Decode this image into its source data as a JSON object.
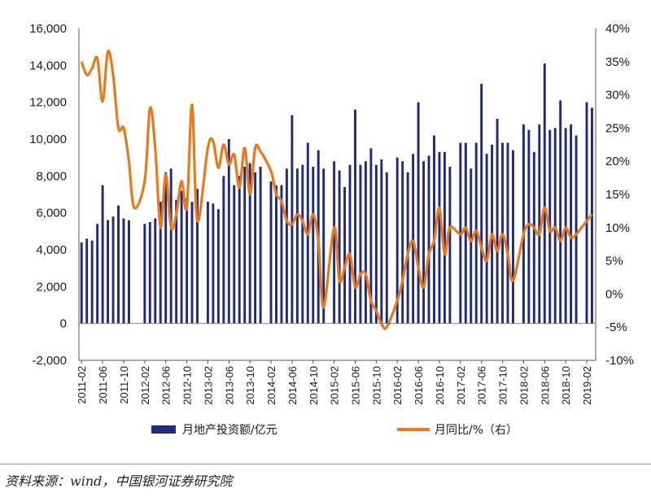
{
  "chart_data": {
    "type": "bar+line",
    "x_labels": [
      "2011-02",
      "2011-06",
      "2011-10",
      "2012-02",
      "2012-06",
      "2012-10",
      "2013-02",
      "2013-06",
      "2013-10",
      "2014-02",
      "2014-06",
      "2014-10",
      "2015-02",
      "2015-06",
      "2015-10",
      "2016-02",
      "2016-06",
      "2016-10",
      "2017-02",
      "2017-06",
      "2017-10",
      "2018-02",
      "2018-06",
      "2018-10",
      "2019-02"
    ],
    "left_axis": {
      "ylim": [
        -2000,
        16000
      ],
      "ticks": [
        "-2,000",
        "0",
        "2,000",
        "4,000",
        "6,000",
        "8,000",
        "10,000",
        "12,000",
        "14,000",
        "16,000"
      ]
    },
    "right_axis": {
      "ylim": [
        -10,
        40
      ],
      "ticks": [
        "-10%",
        "-5%",
        "0%",
        "5%",
        "10%",
        "15%",
        "20%",
        "25%",
        "30%",
        "35%",
        "40%"
      ]
    },
    "series": [
      {
        "name": "月地产投资额/亿元",
        "type": "bar",
        "axis": "left",
        "color": "#1f2a7a",
        "points": [
          [
            "2011-02",
            4400
          ],
          [
            "2011-03",
            4600
          ],
          [
            "2011-04",
            4500
          ],
          [
            "2011-05",
            5400
          ],
          [
            "2011-06",
            7500
          ],
          [
            "2011-07",
            5600
          ],
          [
            "2011-08",
            5800
          ],
          [
            "2011-09",
            6400
          ],
          [
            "2011-10",
            5700
          ],
          [
            "2011-11",
            5600
          ],
          [
            "2012-02",
            5400
          ],
          [
            "2012-03",
            5500
          ],
          [
            "2012-04",
            5700
          ],
          [
            "2012-05",
            6600
          ],
          [
            "2012-06",
            8200
          ],
          [
            "2012-07",
            8400
          ],
          [
            "2012-08",
            6700
          ],
          [
            "2012-09",
            7200
          ],
          [
            "2012-10",
            6800
          ],
          [
            "2012-11",
            6600
          ],
          [
            "2012-12",
            7300
          ],
          [
            "2013-02",
            6600
          ],
          [
            "2013-03",
            6500
          ],
          [
            "2013-04",
            6200
          ],
          [
            "2013-05",
            8000
          ],
          [
            "2013-06",
            10000
          ],
          [
            "2013-07",
            7500
          ],
          [
            "2013-08",
            8000
          ],
          [
            "2013-09",
            8500
          ],
          [
            "2013-10",
            8700
          ],
          [
            "2013-11",
            8200
          ],
          [
            "2013-12",
            8500
          ],
          [
            "2014-02",
            7700
          ],
          [
            "2014-03",
            7500
          ],
          [
            "2014-04",
            7500
          ],
          [
            "2014-05",
            8400
          ],
          [
            "2014-06",
            11300
          ],
          [
            "2014-07",
            8400
          ],
          [
            "2014-08",
            8600
          ],
          [
            "2014-09",
            9800
          ],
          [
            "2014-10",
            8500
          ],
          [
            "2014-11",
            9400
          ],
          [
            "2014-12",
            8400
          ],
          [
            "2015-02",
            8800
          ],
          [
            "2015-03",
            8300
          ],
          [
            "2015-04",
            7400
          ],
          [
            "2015-05",
            8600
          ],
          [
            "2015-06",
            11600
          ],
          [
            "2015-07",
            8600
          ],
          [
            "2015-08",
            8800
          ],
          [
            "2015-09",
            9500
          ],
          [
            "2015-10",
            8600
          ],
          [
            "2015-11",
            8900
          ],
          [
            "2015-12",
            8200
          ],
          [
            "2016-02",
            9000
          ],
          [
            "2016-03",
            8800
          ],
          [
            "2016-04",
            8200
          ],
          [
            "2016-05",
            9200
          ],
          [
            "2016-06",
            12000
          ],
          [
            "2016-07",
            8800
          ],
          [
            "2016-08",
            9100
          ],
          [
            "2016-09",
            10200
          ],
          [
            "2016-10",
            9300
          ],
          [
            "2016-11",
            9300
          ],
          [
            "2016-12",
            8500
          ],
          [
            "2017-02",
            9800
          ],
          [
            "2017-03",
            9800
          ],
          [
            "2017-04",
            8400
          ],
          [
            "2017-05",
            9800
          ],
          [
            "2017-06",
            13000
          ],
          [
            "2017-07",
            9200
          ],
          [
            "2017-08",
            9700
          ],
          [
            "2017-09",
            11100
          ],
          [
            "2017-10",
            9800
          ],
          [
            "2017-11",
            9800
          ],
          [
            "2017-12",
            9400
          ],
          [
            "2018-02",
            10800
          ],
          [
            "2018-03",
            10500
          ],
          [
            "2018-04",
            9300
          ],
          [
            "2018-05",
            10800
          ],
          [
            "2018-06",
            14100
          ],
          [
            "2018-07",
            10500
          ],
          [
            "2018-08",
            10600
          ],
          [
            "2018-09",
            12100
          ],
          [
            "2018-10",
            10600
          ],
          [
            "2018-11",
            10800
          ],
          [
            "2018-12",
            10200
          ],
          [
            "2019-02",
            12000
          ],
          [
            "2019-03",
            11700
          ]
        ]
      },
      {
        "name": "月同比/%（右）",
        "type": "line",
        "axis": "right",
        "color": "#e87a1c",
        "points": [
          [
            "2011-02",
            35
          ],
          [
            "2011-03",
            33
          ],
          [
            "2011-04",
            34
          ],
          [
            "2011-05",
            35.5
          ],
          [
            "2011-06",
            29
          ],
          [
            "2011-07",
            36.5
          ],
          [
            "2011-08",
            33
          ],
          [
            "2011-09",
            25
          ],
          [
            "2011-10",
            25
          ],
          [
            "2011-11",
            20
          ],
          [
            "2011-12",
            13
          ],
          [
            "2012-02",
            17
          ],
          [
            "2012-03",
            28
          ],
          [
            "2012-04",
            22
          ],
          [
            "2012-05",
            10
          ],
          [
            "2012-06",
            18
          ],
          [
            "2012-07",
            10
          ],
          [
            "2012-08",
            12
          ],
          [
            "2012-09",
            17
          ],
          [
            "2012-10",
            13
          ],
          [
            "2012-11",
            28.5
          ],
          [
            "2012-12",
            11
          ],
          [
            "2013-02",
            22
          ],
          [
            "2013-03",
            23
          ],
          [
            "2013-04",
            19
          ],
          [
            "2013-05",
            22.5
          ],
          [
            "2013-06",
            19.5
          ],
          [
            "2013-07",
            21
          ],
          [
            "2013-08",
            16
          ],
          [
            "2013-09",
            22
          ],
          [
            "2013-10",
            15
          ],
          [
            "2013-11",
            22
          ],
          [
            "2013-12",
            21.5
          ],
          [
            "2014-02",
            18.5
          ],
          [
            "2014-03",
            15
          ],
          [
            "2014-04",
            14
          ],
          [
            "2014-05",
            11
          ],
          [
            "2014-06",
            10.5
          ],
          [
            "2014-07",
            12
          ],
          [
            "2014-08",
            11
          ],
          [
            "2014-09",
            9
          ],
          [
            "2014-10",
            12
          ],
          [
            "2014-11",
            8
          ],
          [
            "2014-12",
            -2
          ],
          [
            "2015-02",
            10
          ],
          [
            "2015-03",
            2
          ],
          [
            "2015-04",
            4
          ],
          [
            "2015-05",
            6
          ],
          [
            "2015-06",
            1
          ],
          [
            "2015-07",
            3
          ],
          [
            "2015-08",
            3
          ],
          [
            "2015-09",
            -1
          ],
          [
            "2015-10",
            -2.5
          ],
          [
            "2015-11",
            -4.5
          ],
          [
            "2015-12",
            -5
          ],
          [
            "2016-02",
            -1
          ],
          [
            "2016-03",
            2
          ],
          [
            "2016-04",
            6
          ],
          [
            "2016-05",
            8
          ],
          [
            "2016-06",
            4
          ],
          [
            "2016-07",
            1
          ],
          [
            "2016-08",
            6
          ],
          [
            "2016-09",
            8
          ],
          [
            "2016-10",
            13
          ],
          [
            "2016-11",
            6
          ],
          [
            "2016-12",
            10
          ],
          [
            "2017-02",
            9
          ],
          [
            "2017-03",
            10
          ],
          [
            "2017-04",
            8
          ],
          [
            "2017-05",
            9.5
          ],
          [
            "2017-06",
            7
          ],
          [
            "2017-07",
            5
          ],
          [
            "2017-08",
            9
          ],
          [
            "2017-09",
            6.5
          ],
          [
            "2017-10",
            9
          ],
          [
            "2017-11",
            6
          ],
          [
            "2017-12",
            2
          ],
          [
            "2018-02",
            9
          ],
          [
            "2018-03",
            10.5
          ],
          [
            "2018-04",
            10
          ],
          [
            "2018-05",
            9
          ],
          [
            "2018-06",
            13
          ],
          [
            "2018-07",
            9.5
          ],
          [
            "2018-08",
            10
          ],
          [
            "2018-09",
            8
          ],
          [
            "2018-10",
            10
          ],
          [
            "2018-11",
            8.5
          ],
          [
            "2018-12",
            9
          ],
          [
            "2019-02",
            11
          ],
          [
            "2019-03",
            12
          ]
        ]
      }
    ],
    "legend_placement": "bottom",
    "grid": false
  },
  "legend": {
    "bar_label": "月地产投资额/亿元",
    "line_label": "月同比/%（右）"
  },
  "source_text": "资料来源：wind，中国银河证券研究院"
}
